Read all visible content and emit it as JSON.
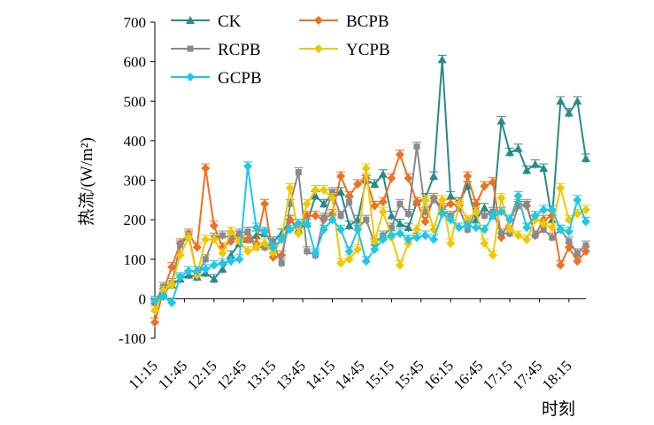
{
  "chart_data": {
    "type": "line",
    "ylabel": "热流/(W/m²)",
    "xlabel": "时刻",
    "ylim": [
      -100,
      700
    ],
    "yticks": [
      -100,
      0,
      100,
      200,
      300,
      400,
      500,
      600,
      700
    ],
    "x_ticks": [
      "11:15",
      "11:45",
      "12:15",
      "12:45",
      "13:15",
      "13:45",
      "14:15",
      "14:45",
      "15:15",
      "15:45",
      "16:15",
      "16:45",
      "17:15",
      "17:45",
      "18:15"
    ],
    "legend_position": "top-left (inside)",
    "grid": false,
    "error_bars": true,
    "series": [
      {
        "name": "CK",
        "color": "#2a8a8a",
        "marker": "triangle",
        "values": [
          -5,
          15,
          35,
          50,
          60,
          55,
          65,
          50,
          75,
          110,
          140,
          150,
          160,
          165,
          145,
          165,
          200,
          175,
          190,
          260,
          240,
          265,
          270,
          185,
          200,
          300,
          290,
          315,
          210,
          190,
          180,
          245,
          255,
          310,
          605,
          260,
          245,
          285,
          200,
          230,
          210,
          450,
          370,
          380,
          325,
          340,
          330,
          200,
          500,
          470,
          500,
          355
        ]
      },
      {
        "name": "BCPB",
        "color": "#f07020",
        "marker": "diamond",
        "values": [
          -60,
          20,
          80,
          140,
          165,
          130,
          330,
          185,
          130,
          145,
          160,
          150,
          140,
          240,
          105,
          110,
          200,
          180,
          210,
          210,
          200,
          215,
          310,
          260,
          290,
          305,
          235,
          245,
          305,
          365,
          305,
          245,
          195,
          255,
          230,
          240,
          235,
          310,
          240,
          285,
          295,
          155,
          200,
          240,
          235,
          160,
          200,
          210,
          85,
          130,
          95,
          120
        ]
      },
      {
        "name": "RCPB",
        "color": "#8a8a8a",
        "marker": "square",
        "values": [
          -10,
          30,
          40,
          135,
          160,
          60,
          100,
          155,
          160,
          155,
          165,
          170,
          130,
          130,
          140,
          90,
          240,
          320,
          120,
          110,
          205,
          270,
          210,
          245,
          180,
          200,
          140,
          160,
          180,
          240,
          215,
          385,
          220,
          250,
          225,
          210,
          230,
          175,
          225,
          210,
          220,
          165,
          165,
          235,
          240,
          160,
          175,
          155,
          175,
          145,
          115,
          135
        ]
      },
      {
        "name": "YCPB",
        "color": "#f0c800",
        "marker": "diamond",
        "values": [
          -30,
          20,
          35,
          110,
          155,
          60,
          150,
          150,
          115,
          170,
          145,
          120,
          130,
          140,
          115,
          150,
          280,
          165,
          240,
          275,
          275,
          255,
          90,
          100,
          125,
          330,
          145,
          220,
          155,
          85,
          140,
          175,
          250,
          175,
          250,
          140,
          240,
          200,
          220,
          140,
          110,
          255,
          175,
          160,
          150,
          200,
          190,
          180,
          280,
          200,
          215,
          225
        ]
      },
      {
        "name": "GCPB",
        "color": "#1ec8e8",
        "marker": "diamond",
        "values": [
          -5,
          5,
          -10,
          55,
          70,
          70,
          75,
          85,
          90,
          95,
          100,
          335,
          180,
          170,
          130,
          150,
          175,
          190,
          190,
          115,
          175,
          200,
          175,
          120,
          175,
          95,
          125,
          150,
          160,
          165,
          150,
          155,
          160,
          150,
          215,
          200,
          180,
          185,
          180,
          175,
          210,
          220,
          200,
          260,
          180,
          210,
          225,
          225,
          175,
          170,
          250,
          195
        ]
      }
    ]
  }
}
